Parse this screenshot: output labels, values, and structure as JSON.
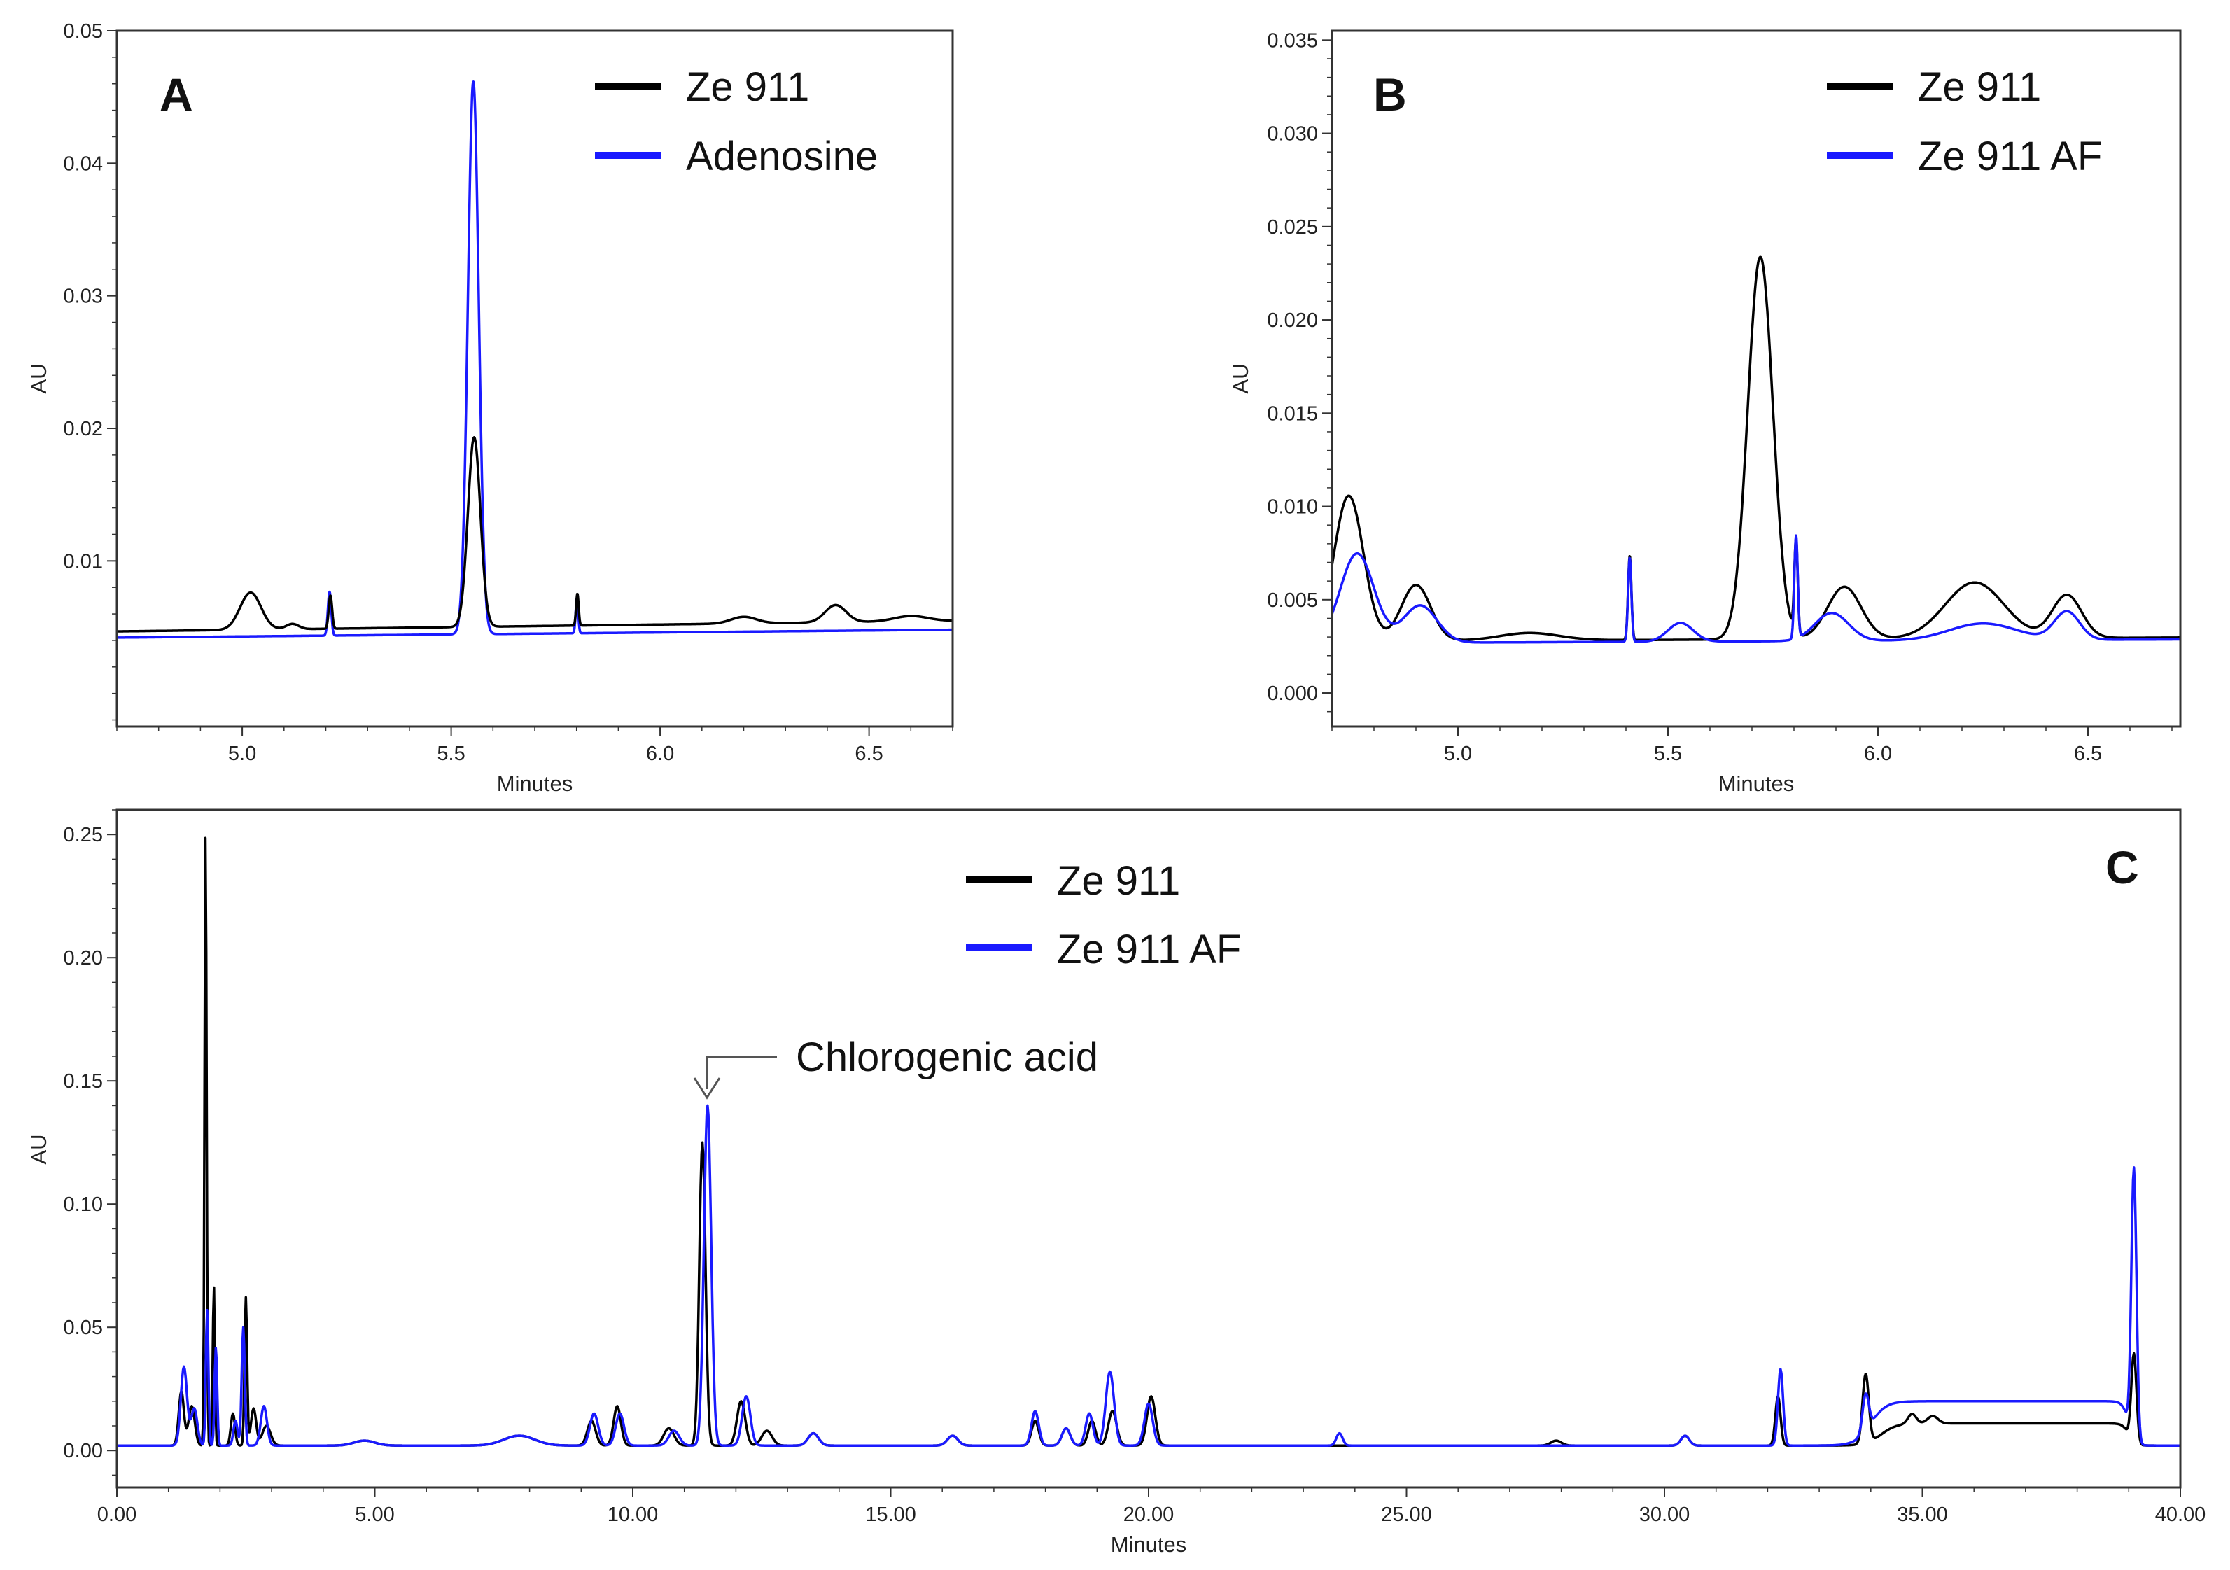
{
  "colors": {
    "ze911": "#000000",
    "blue": "#1a1aff",
    "axis": "#333333"
  },
  "chart_data": [
    {
      "type": "line",
      "panel": "A",
      "xlabel": "Minutes",
      "ylabel": "AU",
      "xlim": [
        4.7,
        6.7
      ],
      "ylim": [
        -0.0025,
        0.05
      ],
      "x_ticks": [
        "5.0",
        "5.5",
        "6.0",
        "6.5"
      ],
      "x_tick_values": [
        5.0,
        5.5,
        6.0,
        6.5
      ],
      "y_ticks": [
        "0.01",
        "0.02",
        "0.03",
        "0.04",
        "0.05"
      ],
      "y_tick_values": [
        0.01,
        0.02,
        0.03,
        0.04,
        0.05
      ],
      "legend": [
        {
          "label": "Ze 911",
          "color": "#000000"
        },
        {
          "label": "Adenosine",
          "color": "#1a1aff"
        }
      ],
      "series": [
        {
          "name": "Ze 911",
          "color": "#000000",
          "baseline": 0.0028,
          "slope": 0.0004,
          "peaks": [
            [
              5.02,
              0.0028,
              0.025
            ],
            [
              5.12,
              0.0004,
              0.015
            ],
            [
              5.211,
              0.0025,
              0.004
            ],
            [
              5.555,
              0.0143,
              0.015
            ],
            [
              5.802,
              0.0024,
              0.003
            ],
            [
              6.2,
              0.0005,
              0.03
            ],
            [
              6.42,
              0.0013,
              0.025
            ],
            [
              6.6,
              0.0004,
              0.04
            ]
          ]
        },
        {
          "name": "Adenosine",
          "color": "#1a1aff",
          "baseline": 0.0028,
          "slope": 0.0003,
          "peaks": [
            [
              5.209,
              0.0033,
              0.004
            ],
            [
              5.553,
              0.0417,
              0.013
            ],
            [
              5.801,
              0.0027,
              0.003
            ]
          ]
        }
      ]
    },
    {
      "type": "line",
      "panel": "B",
      "xlabel": "Minutes",
      "ylabel": "AU",
      "xlim": [
        4.7,
        6.72
      ],
      "ylim": [
        -0.0018,
        0.0355
      ],
      "x_ticks": [
        "5.0",
        "5.5",
        "6.0",
        "6.5"
      ],
      "x_tick_values": [
        5.0,
        5.5,
        6.0,
        6.5
      ],
      "y_ticks": [
        "0.000",
        "0.005",
        "0.010",
        "0.015",
        "0.020",
        "0.025",
        "0.030",
        "0.035"
      ],
      "y_tick_values": [
        0.0,
        0.005,
        0.01,
        0.015,
        0.02,
        0.025,
        0.03,
        0.035
      ],
      "legend": [
        {
          "label": "Ze 911",
          "color": "#000000"
        },
        {
          "label": "Ze 911 AF",
          "color": "#1a1aff"
        }
      ],
      "series": [
        {
          "name": "Ze 911",
          "color": "#000000",
          "baseline": 0.0023,
          "slope": 0.0001,
          "peaks": [
            [
              4.74,
              0.0078,
              0.035
            ],
            [
              4.9,
              0.003,
              0.035
            ],
            [
              5.17,
              0.0004,
              0.07
            ],
            [
              5.409,
              0.0045,
              0.004
            ],
            [
              5.72,
              0.0205,
              0.03
            ],
            [
              5.805,
              0.005,
              0.004
            ],
            [
              5.92,
              0.0028,
              0.04
            ],
            [
              6.23,
              0.003,
              0.07
            ],
            [
              6.45,
              0.0023,
              0.035
            ]
          ]
        },
        {
          "name": "Ze 911 AF",
          "color": "#1a1aff",
          "baseline": 0.0022,
          "slope": 0.0001,
          "peaks": [
            [
              4.76,
              0.0048,
              0.04
            ],
            [
              4.91,
              0.002,
              0.04
            ],
            [
              5.409,
              0.0045,
              0.004
            ],
            [
              5.53,
              0.001,
              0.03
            ],
            [
              5.805,
              0.0055,
              0.004
            ],
            [
              5.89,
              0.0015,
              0.04
            ],
            [
              6.25,
              0.0009,
              0.08
            ],
            [
              6.45,
              0.0015,
              0.03
            ]
          ]
        }
      ]
    },
    {
      "type": "line",
      "panel": "C",
      "xlabel": "Minutes",
      "ylabel": "AU",
      "xlim": [
        0.0,
        40.0
      ],
      "ylim": [
        -0.015,
        0.26
      ],
      "x_ticks": [
        "0.00",
        "5.00",
        "10.00",
        "15.00",
        "20.00",
        "25.00",
        "30.00",
        "35.00",
        "40.00"
      ],
      "x_tick_values": [
        0,
        5,
        10,
        15,
        20,
        25,
        30,
        35,
        40
      ],
      "y_ticks": [
        "0.00",
        "0.05",
        "0.10",
        "0.15",
        "0.20",
        "0.25"
      ],
      "y_tick_values": [
        0.0,
        0.05,
        0.1,
        0.15,
        0.2,
        0.25
      ],
      "legend": [
        {
          "label": "Ze 911",
          "color": "#000000"
        },
        {
          "label": "Ze 911 AF",
          "color": "#1a1aff"
        }
      ],
      "annotation": {
        "text": "Chlorogenic acid",
        "x": 11.35,
        "y": 0.15
      },
      "series": [
        {
          "name": "Ze 911",
          "color": "#000000",
          "baseline": 0.002,
          "plateau": [
            34.2,
            39.0,
            0.009
          ],
          "peaks": [
            [
              1.25,
              0.022,
              0.05
            ],
            [
              1.45,
              0.016,
              0.06
            ],
            [
              1.72,
              0.25,
              0.02
            ],
            [
              1.88,
              0.065,
              0.02
            ],
            [
              2.25,
              0.013,
              0.04
            ],
            [
              2.5,
              0.06,
              0.025
            ],
            [
              2.65,
              0.015,
              0.05
            ],
            [
              2.9,
              0.008,
              0.08
            ],
            [
              4.8,
              0.002,
              0.2
            ],
            [
              7.8,
              0.004,
              0.3
            ],
            [
              9.2,
              0.01,
              0.08
            ],
            [
              9.7,
              0.016,
              0.07
            ],
            [
              10.7,
              0.007,
              0.1
            ],
            [
              11.35,
              0.123,
              0.06
            ],
            [
              12.1,
              0.018,
              0.08
            ],
            [
              12.6,
              0.006,
              0.1
            ],
            [
              13.5,
              0.005,
              0.1
            ],
            [
              16.2,
              0.004,
              0.1
            ],
            [
              17.8,
              0.01,
              0.07
            ],
            [
              18.4,
              0.007,
              0.08
            ],
            [
              18.9,
              0.01,
              0.07
            ],
            [
              19.3,
              0.014,
              0.08
            ],
            [
              20.05,
              0.02,
              0.08
            ],
            [
              27.9,
              0.002,
              0.1
            ],
            [
              30.4,
              0.004,
              0.08
            ],
            [
              32.2,
              0.02,
              0.05
            ],
            [
              33.9,
              0.028,
              0.06
            ],
            [
              34.8,
              0.004,
              0.08
            ],
            [
              35.2,
              0.003,
              0.1
            ],
            [
              39.1,
              0.036,
              0.05
            ]
          ]
        },
        {
          "name": "Ze 911 AF",
          "color": "#1a1aff",
          "baseline": 0.002,
          "plateau": [
            34.0,
            39.0,
            0.018
          ],
          "peaks": [
            [
              1.3,
              0.032,
              0.06
            ],
            [
              1.5,
              0.015,
              0.06
            ],
            [
              1.75,
              0.055,
              0.025
            ],
            [
              1.92,
              0.04,
              0.025
            ],
            [
              2.3,
              0.01,
              0.04
            ],
            [
              2.45,
              0.048,
              0.03
            ],
            [
              2.85,
              0.016,
              0.06
            ],
            [
              4.8,
              0.002,
              0.2
            ],
            [
              7.8,
              0.004,
              0.3
            ],
            [
              9.25,
              0.013,
              0.08
            ],
            [
              9.75,
              0.013,
              0.08
            ],
            [
              10.8,
              0.006,
              0.1
            ],
            [
              11.45,
              0.138,
              0.07
            ],
            [
              12.2,
              0.02,
              0.08
            ],
            [
              13.5,
              0.005,
              0.1
            ],
            [
              16.2,
              0.004,
              0.1
            ],
            [
              17.8,
              0.014,
              0.07
            ],
            [
              18.4,
              0.007,
              0.08
            ],
            [
              18.85,
              0.013,
              0.07
            ],
            [
              19.25,
              0.03,
              0.08
            ],
            [
              20.0,
              0.017,
              0.08
            ],
            [
              23.7,
              0.005,
              0.06
            ],
            [
              30.4,
              0.004,
              0.08
            ],
            [
              32.25,
              0.031,
              0.05
            ],
            [
              33.9,
              0.015,
              0.06
            ],
            [
              39.1,
              0.11,
              0.05
            ]
          ]
        }
      ]
    }
  ]
}
